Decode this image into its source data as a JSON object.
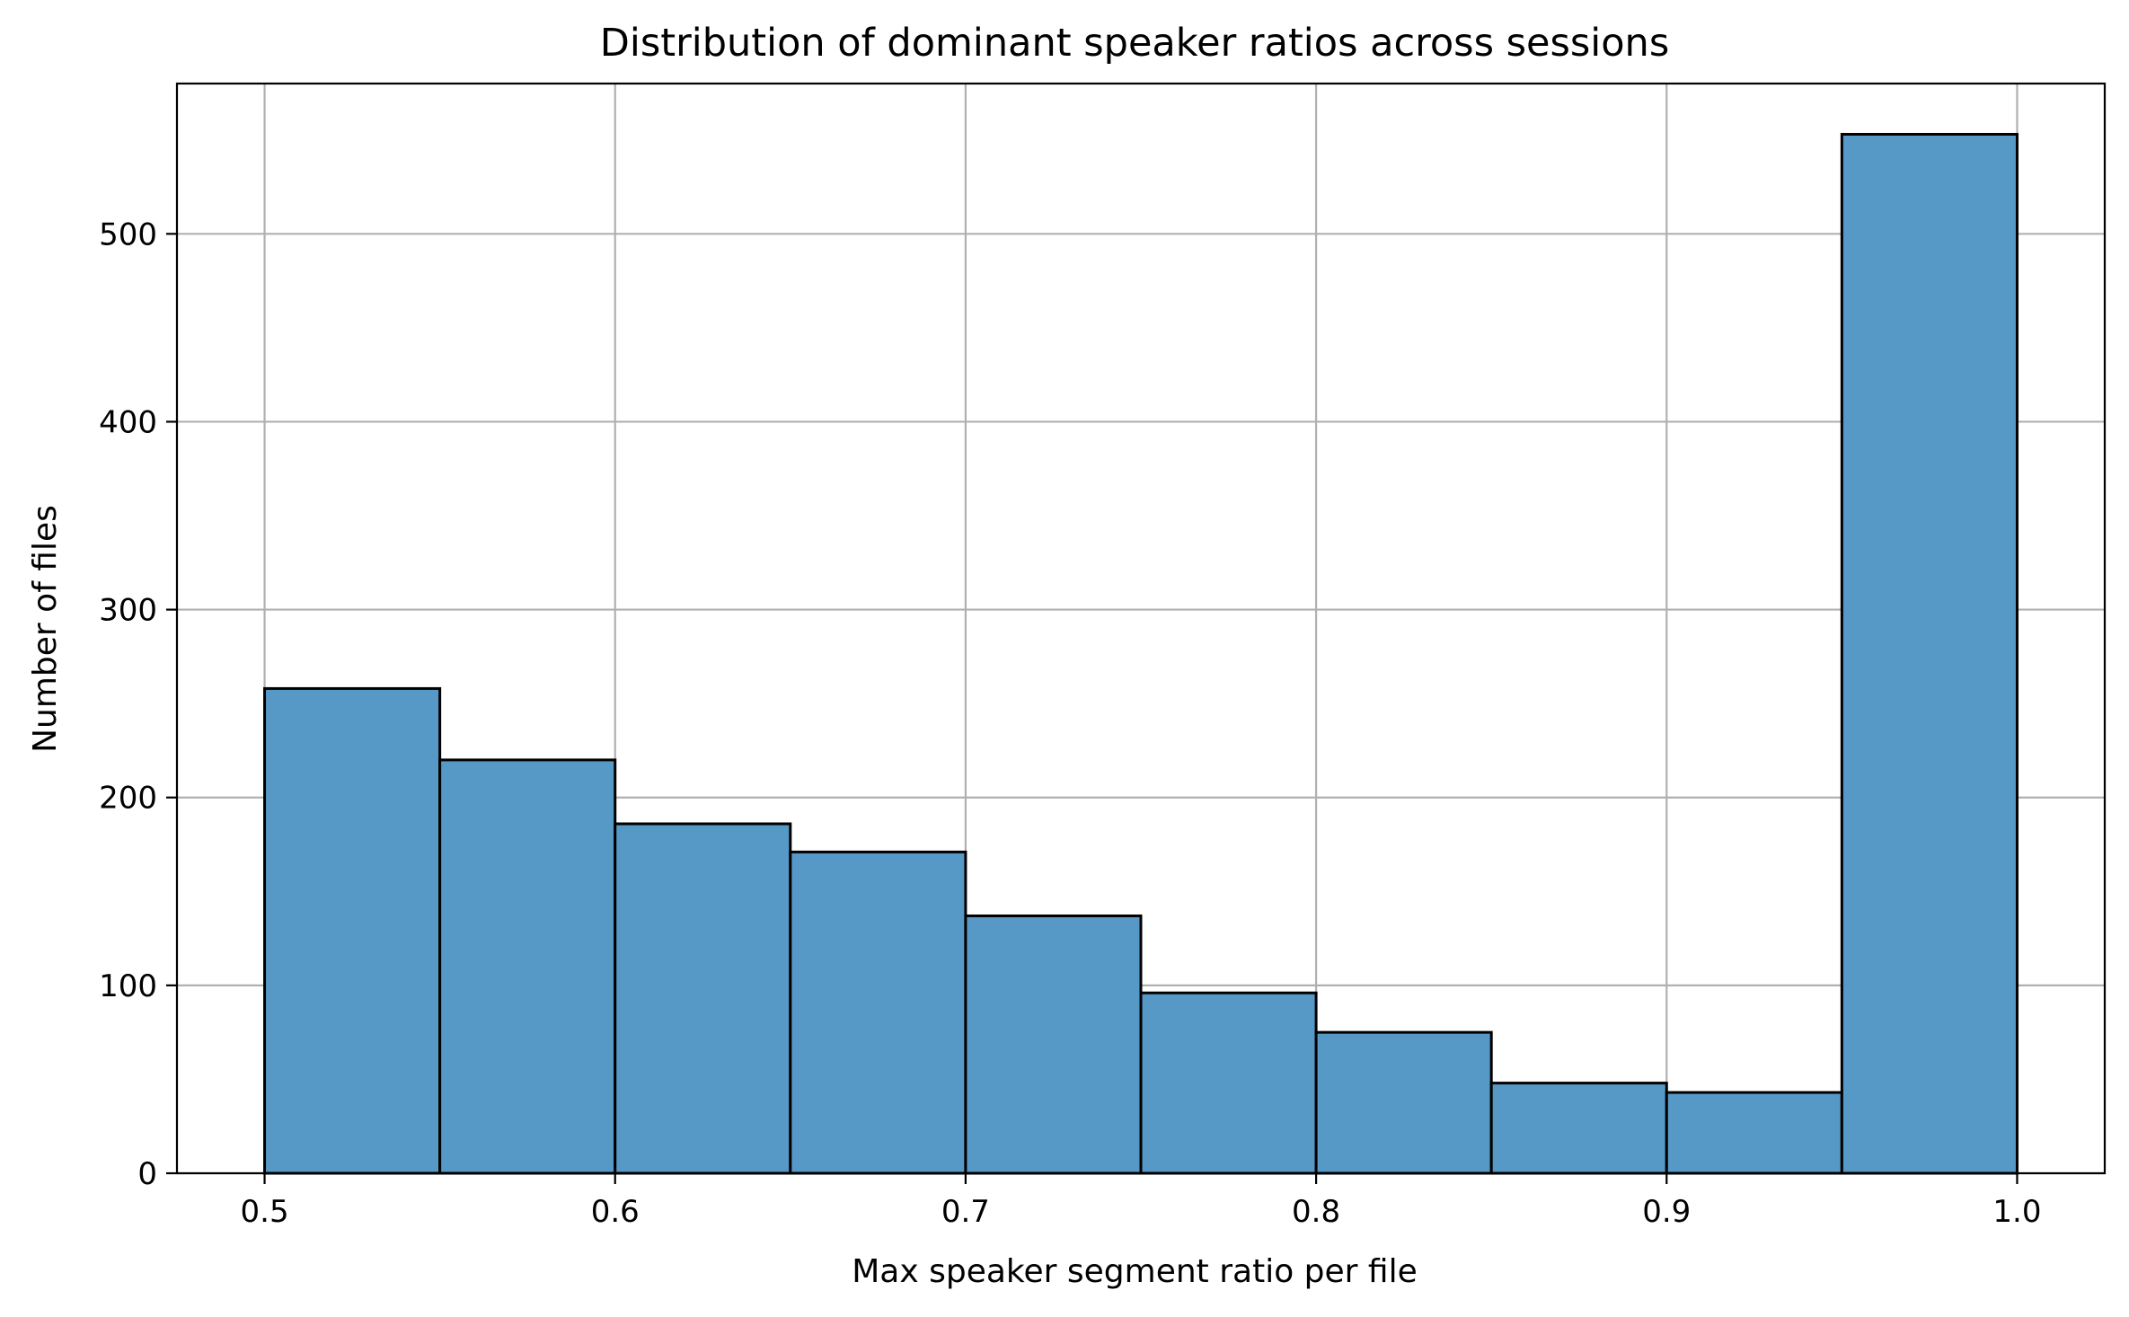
{
  "chart_data": {
    "type": "bar",
    "title": "Distribution of dominant speaker ratios across sessions",
    "xlabel": "Max speaker segment ratio per file",
    "ylabel": "Number of files",
    "bin_edges": [
      0.5,
      0.55,
      0.6,
      0.65,
      0.7,
      0.75,
      0.8,
      0.85,
      0.9,
      0.95,
      1.0
    ],
    "values": [
      258,
      220,
      186,
      171,
      137,
      96,
      75,
      48,
      43,
      553
    ],
    "xlim": [
      0.475,
      1.025
    ],
    "ylim": [
      0,
      580
    ],
    "xticks": [
      0.5,
      0.6,
      0.7,
      0.8,
      0.9,
      1.0
    ],
    "xtick_labels": [
      "0.5",
      "0.6",
      "0.7",
      "0.8",
      "0.9",
      "1.0"
    ],
    "yticks": [
      0,
      100,
      200,
      300,
      400,
      500
    ],
    "ytick_labels": [
      "0",
      "100",
      "200",
      "300",
      "400",
      "500"
    ],
    "grid": true,
    "bar_color": "#5699c6",
    "edge_color": "#000000"
  }
}
